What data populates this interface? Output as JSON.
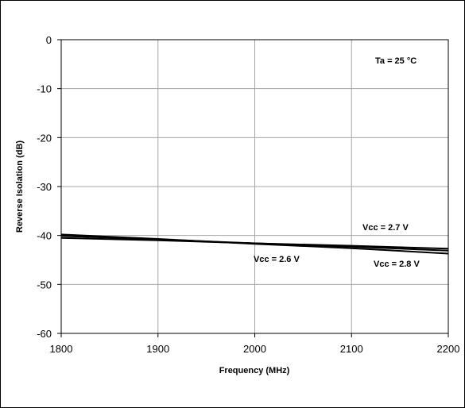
{
  "chart_data": {
    "type": "line",
    "title": "",
    "xlabel": "Frequency (MHz)",
    "ylabel": "Reverse Isolation (dB)",
    "xlim": [
      1800,
      2200
    ],
    "ylim": [
      -60,
      0
    ],
    "x_ticks": [
      1800,
      1900,
      2000,
      2100,
      2200
    ],
    "y_ticks": [
      0,
      -10,
      -20,
      -30,
      -40,
      -50,
      -60
    ],
    "x_tick_labels": [
      "1800",
      "1900",
      "2000",
      "2100",
      "2200"
    ],
    "y_tick_labels": [
      "0",
      "-10",
      "-20",
      "-30",
      "-40",
      "-50",
      "-60"
    ],
    "grid": true,
    "legend": "none",
    "series": [
      {
        "name": "Vcc = 2.6 V",
        "x": [
          1800,
          1900,
          2000,
          2100,
          2200
        ],
        "y": [
          -40.1,
          -40.8,
          -41.6,
          -42.3,
          -43.1
        ]
      },
      {
        "name": "Vcc = 2.7 V",
        "x": [
          1800,
          1900,
          2000,
          2100,
          2200
        ],
        "y": [
          -40.5,
          -41.0,
          -41.6,
          -42.1,
          -42.7
        ]
      },
      {
        "name": "Vcc = 2.8 V",
        "x": [
          1800,
          1900,
          2000,
          2100,
          2200
        ],
        "y": [
          -39.8,
          -40.7,
          -41.7,
          -42.6,
          -43.7
        ]
      }
    ],
    "annotations": [
      {
        "text": "Ta = 25 °C"
      },
      {
        "text": "Vcc = 2.7 V"
      },
      {
        "text": "Vcc = 2.6 V"
      },
      {
        "text": "Vcc = 2.8 V"
      }
    ],
    "colors": {
      "line": "#000000",
      "grid": "#a6a6a6",
      "frame": "#000000"
    }
  }
}
